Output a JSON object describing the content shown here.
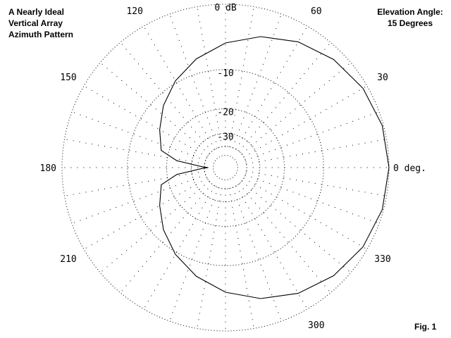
{
  "title_lines": [
    "A Nearly Ideal",
    "Vertical Array",
    "Azimuth Pattern"
  ],
  "info_lines": [
    "Elevation Angle:",
    "15 Degrees"
  ],
  "figure_label": "Fig. 1",
  "chart_data": {
    "type": "polar",
    "title": "A Nearly Ideal Vertical Array Azimuth Pattern",
    "annotation": "Elevation Angle: 15 Degrees",
    "angle_labels": [
      {
        "deg": 0,
        "text": "0 deg."
      },
      {
        "deg": 30,
        "text": "30"
      },
      {
        "deg": 60,
        "text": "60"
      },
      {
        "deg": 120,
        "text": "120"
      },
      {
        "deg": 150,
        "text": "150"
      },
      {
        "deg": 180,
        "text": "180"
      },
      {
        "deg": 210,
        "text": "210"
      },
      {
        "deg": 300,
        "text": "300"
      },
      {
        "deg": 330,
        "text": "330"
      }
    ],
    "radial_rings": [
      {
        "text": "0 dB",
        "fraction": 1.0
      },
      {
        "text": "-10",
        "fraction": 0.6
      },
      {
        "text": "-20",
        "fraction": 0.36
      },
      {
        "text": "-30",
        "fraction": 0.21
      },
      {
        "text": "",
        "fraction": 0.13
      },
      {
        "text": "",
        "fraction": 0.075
      }
    ],
    "spokes_every_deg": 10,
    "series": [
      {
        "pattern": "cardioid",
        "azimuth_deg": [
          0,
          15,
          30,
          45,
          60,
          75,
          90,
          105,
          120,
          135,
          150,
          165,
          172,
          178,
          180,
          182,
          188,
          195,
          210,
          225,
          240,
          255,
          270,
          285,
          300,
          315,
          330,
          345,
          360
        ],
        "radius_fraction": [
          1.0,
          0.993,
          0.971,
          0.936,
          0.889,
          0.83,
          0.763,
          0.689,
          0.613,
          0.537,
          0.465,
          0.407,
          0.3,
          0.14,
          0.105,
          0.14,
          0.3,
          0.407,
          0.465,
          0.537,
          0.613,
          0.689,
          0.763,
          0.83,
          0.889,
          0.936,
          0.971,
          0.993,
          1.0
        ]
      }
    ],
    "grid": true
  }
}
